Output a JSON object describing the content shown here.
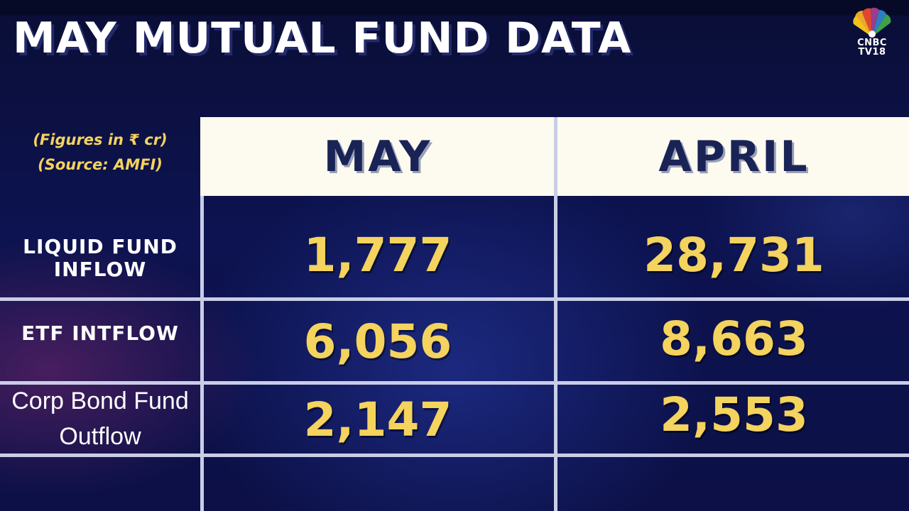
{
  "title": "MAY MUTUAL FUND DATA",
  "logo": {
    "line1": "CNBC",
    "line2": "TV18"
  },
  "notes": [
    "(Figures in ₹ cr)",
    "(Source: AMFI)"
  ],
  "columns": [
    "MAY",
    "APRIL"
  ],
  "rows": [
    {
      "label": [
        "LIQUID FUND",
        "INFLOW"
      ],
      "may": "1,777",
      "april": "28,731"
    },
    {
      "label": [
        "ETF INTFLOW"
      ],
      "may": "6,056",
      "april": "8,663"
    },
    {
      "label": [
        "Corp Bond Fund",
        "Outflow"
      ],
      "may": "2,147",
      "april": "2,553"
    }
  ],
  "colors": {
    "value": "#f4d35e",
    "header_bg": "#fdfbef",
    "header_text": "#1a2356",
    "background": "#0b0f3d"
  }
}
